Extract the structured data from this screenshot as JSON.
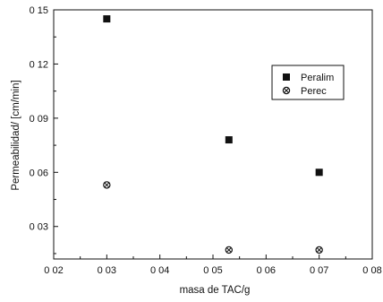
{
  "chart_data": {
    "type": "scatter",
    "xlabel": "masa de TAC/g",
    "ylabel": "Permeabilidad/ [cm/min]",
    "xlim": [
      0.02,
      0.08
    ],
    "ylim": [
      0.012,
      0.15
    ],
    "xticks": [
      0.02,
      0.03,
      0.04,
      0.05,
      0.06,
      0.07,
      0.08
    ],
    "xtick_labels": [
      "0 02",
      "0 03",
      "0 04",
      "0 05",
      "0 06",
      "0 07",
      "0 08"
    ],
    "yticks": [
      0.03,
      0.06,
      0.09,
      0.12,
      0.15
    ],
    "ytick_labels": [
      "0 03",
      "0 06",
      "0 09",
      "0 12",
      "0 15"
    ],
    "legend_position": "top-right",
    "grid": false,
    "series": [
      {
        "name": "Peralim",
        "marker": "square",
        "color": "#111111",
        "x": [
          0.03,
          0.053,
          0.07
        ],
        "y": [
          0.145,
          0.078,
          0.06
        ]
      },
      {
        "name": "Perec",
        "marker": "circle-x",
        "color": "#111111",
        "x": [
          0.03,
          0.053,
          0.07
        ],
        "y": [
          0.053,
          0.017,
          0.017
        ]
      }
    ]
  }
}
